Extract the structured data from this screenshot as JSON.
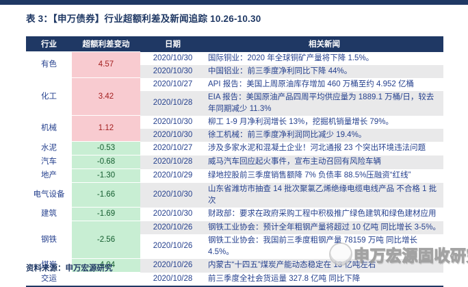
{
  "page": {
    "title": "表 3：【申万债券】行业超额利差及新闻追踪 10.26-10.30",
    "source_label": "资料来源：申万宏源研究",
    "watermark_text": "申万宏源固收研究"
  },
  "colors": {
    "navy": "#1f3864",
    "body_text_blue": "#26418e",
    "positive_bg": "#f8cbd0",
    "positive_text": "#a32020",
    "negative_bg": "#c8eed3",
    "negative_text": "#135c2e",
    "stripe_bg": "#e9e9ea"
  },
  "table": {
    "headers": [
      "行业",
      "超额利差变动",
      "日期",
      "相关新闻"
    ],
    "groups": [
      {
        "industry": "有色",
        "change": "4.57",
        "trend": "up",
        "news": [
          {
            "date": "2020/10/30",
            "text": "国际铜业：2020 年全球铜矿产量将下降 1.5%。"
          },
          {
            "date": "2020/10/30",
            "text": "中国铝业：前三季度净利同比下降 44%。"
          }
        ]
      },
      {
        "industry": "化工",
        "change": "3.42",
        "trend": "up",
        "news": [
          {
            "date": "2020/10/27",
            "text": "API 报告：美国上周原油库存增加 460 万桶至约 4.952 亿桶"
          },
          {
            "date": "2020/10/28",
            "text": "EIA 报告：美国原油产品四周平均供应量为 1889.1 万桶/日，较去年同期减少 11.3%"
          }
        ]
      },
      {
        "industry": "机械",
        "change": "1.12",
        "trend": "up",
        "news": [
          {
            "date": "2020/10/30",
            "text": "柳工 1-9 月净利润增长 13%，挖掘机销量增长 79%。"
          },
          {
            "date": "2020/10/30",
            "text": "徐工机械：前三季度净利润同比减少 19.4%。"
          }
        ]
      },
      {
        "industry": "水泥",
        "change": "-0.53",
        "trend": "down",
        "news": [
          {
            "date": "2020/10/27",
            "text": "涉及多家水泥和混凝土企业！河北通报 23 个突出环境违法问题"
          }
        ]
      },
      {
        "industry": "汽车",
        "change": "-0.68",
        "trend": "down",
        "news": [
          {
            "date": "2020/10/28",
            "text": "威马汽车回应起火事件，宣布主动召回有风险车辆"
          }
        ]
      },
      {
        "industry": "地产",
        "change": "-1.30",
        "trend": "down",
        "news": [
          {
            "date": "2020/10/29",
            "text": "绿地控股前三季度销售额降 7% 负债率 88.5%压融资“红线”"
          }
        ]
      },
      {
        "industry": "电气设备",
        "change": "-1.66",
        "trend": "down",
        "news": [
          {
            "date": "2020/10/30",
            "text": "山东省潍坊市抽查 14 批次聚氯乙烯绝缘电缆电线产品 不合格 1 批次"
          }
        ]
      },
      {
        "industry": "建筑",
        "change": "-1.69",
        "trend": "down",
        "news": [
          {
            "date": "2020/10/30",
            "text": "财政部：要求在政府采购工程中积极推广绿色建筑和绿色建材应用"
          }
        ]
      },
      {
        "industry": "钢铁",
        "change": "-2.56",
        "trend": "down",
        "news": [
          {
            "date": "2020/10/26",
            "text": "钢铁工业协会：预计全年粗钢产量将超过 10 亿吨 同比增长 3-5%。"
          },
          {
            "date": "2020/10/26",
            "text": "钢铁工业协会：我国前三季度粗钢产量 78159 万吨 同比增长 4.5%。"
          }
        ]
      },
      {
        "industry": "煤炭",
        "change": "-4.04",
        "trend": "down",
        "news": [
          {
            "date": "2020/10/26",
            "text": "内蒙古“十四五”煤炭产能动态稳定在 13 亿吨左右"
          }
        ]
      },
      {
        "industry": "交运",
        "change": "",
        "trend": "none",
        "news": [
          {
            "date": "2020/10/28",
            "text": "前三季度全社会货运量 327.8 亿吨 同比下降"
          }
        ]
      }
    ]
  }
}
